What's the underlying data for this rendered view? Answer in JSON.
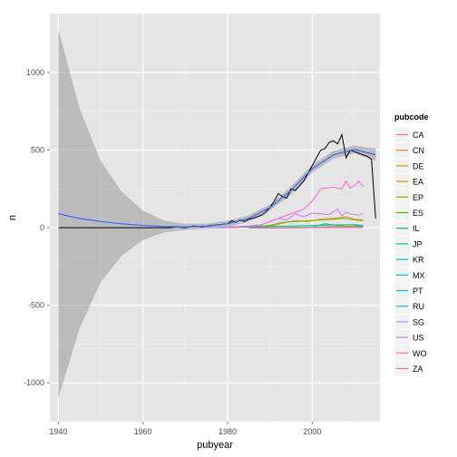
{
  "chart_data": {
    "type": "line",
    "xlabel": "pubyear",
    "ylabel": "n",
    "xlim": [
      1938,
      2016
    ],
    "ylim": [
      -1250,
      1380
    ],
    "xticks": [
      1940,
      1960,
      1980,
      2000
    ],
    "yticks": [
      -1000,
      -500,
      0,
      500,
      1000
    ],
    "grid": true,
    "legend_title": "pubcode",
    "legend_position": "right",
    "series": [
      {
        "name": "CA",
        "color": "#F8766D",
        "x": [
          1985,
          1990,
          1995,
          2000,
          2005,
          2010,
          2012
        ],
        "values": [
          0,
          0,
          1,
          2,
          3,
          3,
          2
        ]
      },
      {
        "name": "CN",
        "color": "#E7851E",
        "x": [
          1985,
          1990,
          1995,
          2000,
          2005,
          2010,
          2012
        ],
        "values": [
          0,
          0,
          1,
          3,
          8,
          10,
          8
        ]
      },
      {
        "name": "DE",
        "color": "#D09400",
        "x": [
          1980,
          1985,
          1990,
          1993,
          1996,
          1999,
          2002,
          2005,
          2008,
          2010,
          2012
        ],
        "values": [
          2,
          5,
          10,
          30,
          45,
          40,
          55,
          60,
          70,
          55,
          50
        ]
      },
      {
        "name": "EA",
        "color": "#B2A100",
        "x": [
          1985,
          1990,
          1995,
          2000,
          2005,
          2010,
          2012
        ],
        "values": [
          0,
          1,
          2,
          3,
          4,
          4,
          3
        ]
      },
      {
        "name": "EP",
        "color": "#89AC00",
        "x": [
          1980,
          1985,
          1990,
          1993,
          1996,
          1999,
          2002,
          2005,
          2008,
          2010,
          2012
        ],
        "values": [
          0,
          5,
          15,
          35,
          40,
          45,
          50,
          55,
          60,
          50,
          45
        ]
      },
      {
        "name": "ES",
        "color": "#45B500",
        "x": [
          1985,
          1990,
          1995,
          2000,
          2005,
          2010,
          2012
        ],
        "values": [
          0,
          0,
          1,
          2,
          3,
          3,
          2
        ]
      },
      {
        "name": "IL",
        "color": "#00BC51",
        "x": [
          1985,
          1990,
          1995,
          2000,
          2005,
          2010,
          2012
        ],
        "values": [
          0,
          0,
          1,
          2,
          3,
          3,
          2
        ]
      },
      {
        "name": "JP",
        "color": "#00C087",
        "x": [
          1975,
          1980,
          1985,
          1990,
          1995,
          2000,
          2005,
          2010,
          2012
        ],
        "values": [
          0,
          2,
          5,
          8,
          12,
          15,
          18,
          20,
          15
        ]
      },
      {
        "name": "KR",
        "color": "#00C0B2",
        "x": [
          1990,
          1995,
          2000,
          2003,
          2006,
          2009,
          2012
        ],
        "values": [
          0,
          2,
          5,
          25,
          15,
          20,
          10
        ]
      },
      {
        "name": "MX",
        "color": "#00BCD6",
        "x": [
          1985,
          1990,
          1995,
          2000,
          2005,
          2010,
          2012
        ],
        "values": [
          0,
          0,
          0,
          1,
          1,
          1,
          1
        ]
      },
      {
        "name": "PT",
        "color": "#00B3F2",
        "x": [
          1985,
          1990,
          1995,
          2000,
          2005,
          2010,
          2012
        ],
        "values": [
          0,
          0,
          0,
          1,
          1,
          1,
          1
        ]
      },
      {
        "name": "RU",
        "color": "#29A3FF",
        "x": [
          1985,
          1990,
          1995,
          2000,
          2005,
          2010,
          2012
        ],
        "values": [
          0,
          0,
          1,
          1,
          2,
          2,
          1
        ]
      },
      {
        "name": "SG",
        "color": "#9C8DFF",
        "x": [
          1985,
          1990,
          1995,
          2000,
          2005,
          2010,
          2012
        ],
        "values": [
          0,
          0,
          1,
          2,
          3,
          3,
          2
        ]
      },
      {
        "name": "US",
        "color": "#D277FF",
        "x": [
          1975,
          1980,
          1985,
          1988,
          1990,
          1992,
          1994,
          1996,
          1998,
          2000,
          2002,
          2004,
          2006,
          2007,
          2008,
          2009,
          2010,
          2011,
          2012
        ],
        "values": [
          0,
          5,
          10,
          20,
          40,
          60,
          50,
          90,
          70,
          95,
          90,
          85,
          120,
          75,
          100,
          90,
          85,
          80,
          95
        ]
      },
      {
        "name": "WO",
        "color": "#F863DF",
        "x": [
          1980,
          1985,
          1988,
          1990,
          1992,
          1994,
          1996,
          1998,
          2000,
          2002,
          2003,
          2005,
          2007,
          2008,
          2009,
          2010,
          2011,
          2012
        ],
        "values": [
          0,
          10,
          20,
          40,
          60,
          80,
          100,
          120,
          170,
          250,
          255,
          260,
          250,
          300,
          255,
          270,
          300,
          265
        ]
      },
      {
        "name": "ZA",
        "color": "#FF6C91",
        "x": [
          1985,
          1990,
          1995,
          2000,
          2005,
          2010,
          2012
        ],
        "values": [
          0,
          0,
          1,
          1,
          2,
          2,
          1
        ]
      }
    ],
    "total": {
      "color": "#000000",
      "x": [
        1940,
        1966,
        1968,
        1970,
        1972,
        1974,
        1976,
        1978,
        1980,
        1981,
        1982,
        1983,
        1984,
        1985,
        1986,
        1987,
        1988,
        1989,
        1990,
        1991,
        1992,
        1993,
        1994,
        1995,
        1996,
        1997,
        1998,
        1999,
        2000,
        2001,
        2002,
        2003,
        2004,
        2005,
        2006,
        2007,
        2008,
        2009,
        2010,
        2011,
        2012,
        2013,
        2014,
        2015
      ],
      "values": [
        0,
        0,
        5,
        0,
        10,
        5,
        15,
        20,
        25,
        45,
        35,
        50,
        40,
        55,
        60,
        70,
        80,
        100,
        130,
        170,
        220,
        200,
        190,
        250,
        240,
        270,
        300,
        350,
        400,
        450,
        500,
        510,
        550,
        560,
        540,
        600,
        450,
        500,
        490,
        480,
        470,
        460,
        440,
        60
      ]
    },
    "smooth": {
      "color": "#3366FF",
      "x": [
        1940,
        1945,
        1950,
        1955,
        1960,
        1965,
        1970,
        1975,
        1980,
        1985,
        1990,
        1995,
        2000,
        2005,
        2010,
        2015
      ],
      "values": [
        90,
        60,
        40,
        25,
        15,
        8,
        5,
        10,
        25,
        60,
        130,
        240,
        380,
        470,
        505,
        470
      ],
      "band_lower": [
        -1100,
        -650,
        -350,
        -180,
        -80,
        -30,
        -15,
        -5,
        5,
        40,
        110,
        215,
        355,
        445,
        480,
        430
      ],
      "band_upper": [
        1280,
        770,
        430,
        230,
        110,
        46,
        25,
        25,
        45,
        80,
        150,
        265,
        405,
        495,
        530,
        510
      ]
    }
  }
}
